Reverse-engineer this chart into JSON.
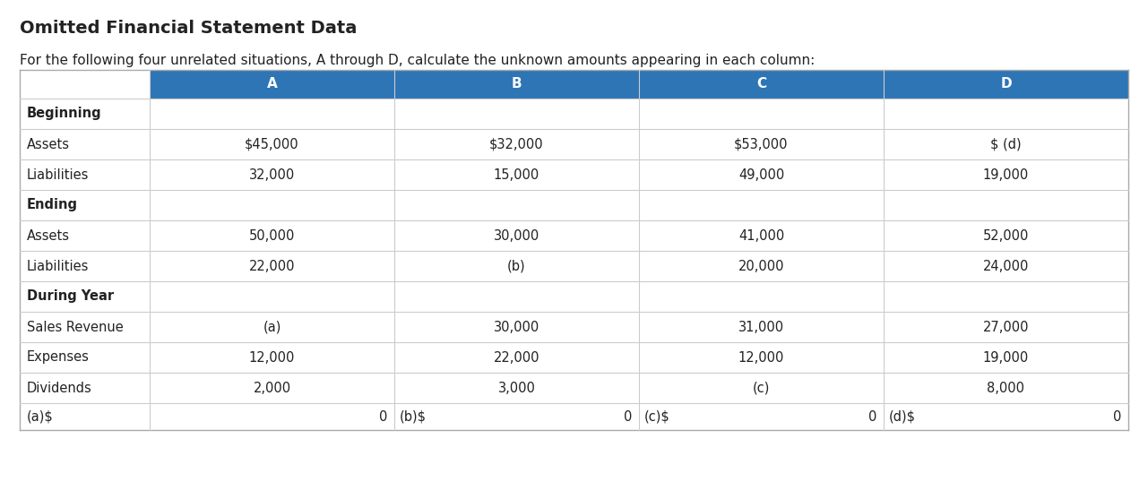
{
  "title": "Omitted Financial Statement Data",
  "subtitle": "For the following four unrelated situations, A through D, calculate the unknown amounts appearing in each column:",
  "header_bg": "#2E75B6",
  "header_text_color": "#FFFFFF",
  "header_cols": [
    "A",
    "B",
    "C",
    "D"
  ],
  "rows": [
    {
      "label": "Beginning",
      "values": [
        "",
        "",
        "",
        ""
      ],
      "bold": true,
      "section": true
    },
    {
      "label": "Assets",
      "values": [
        "$45,000",
        "$32,000",
        "$53,000",
        "$ (d)"
      ],
      "bold": false,
      "section": false
    },
    {
      "label": "Liabilities",
      "values": [
        "32,000",
        "15,000",
        "49,000",
        "19,000"
      ],
      "bold": false,
      "section": false
    },
    {
      "label": "Ending",
      "values": [
        "",
        "",
        "",
        ""
      ],
      "bold": true,
      "section": true
    },
    {
      "label": "Assets",
      "values": [
        "50,000",
        "30,000",
        "41,000",
        "52,000"
      ],
      "bold": false,
      "section": false
    },
    {
      "label": "Liabilities",
      "values": [
        "22,000",
        "(b)",
        "20,000",
        "24,000"
      ],
      "bold": false,
      "section": false
    },
    {
      "label": "During Year",
      "values": [
        "",
        "",
        "",
        ""
      ],
      "bold": true,
      "section": true
    },
    {
      "label": "Sales Revenue",
      "values": [
        "(a)",
        "30,000",
        "31,000",
        "27,000"
      ],
      "bold": false,
      "section": false
    },
    {
      "label": "Expenses",
      "values": [
        "12,000",
        "22,000",
        "12,000",
        "19,000"
      ],
      "bold": false,
      "section": false
    },
    {
      "label": "Dividends",
      "values": [
        "2,000",
        "3,000",
        "(c)",
        "8,000"
      ],
      "bold": false,
      "section": false
    }
  ],
  "answer_labels": [
    "(a)$",
    "(b)$",
    "(c)$",
    "(d)$"
  ],
  "answer_values": [
    "0",
    "0",
    "0",
    "0"
  ],
  "table_line_color": "#CCCCCC",
  "text_color": "#222222",
  "title_fontsize": 14,
  "subtitle_fontsize": 11,
  "cell_fontsize": 10.5,
  "header_fontsize": 11,
  "fig_width": 12.81,
  "fig_height": 5.57,
  "dpi": 100
}
